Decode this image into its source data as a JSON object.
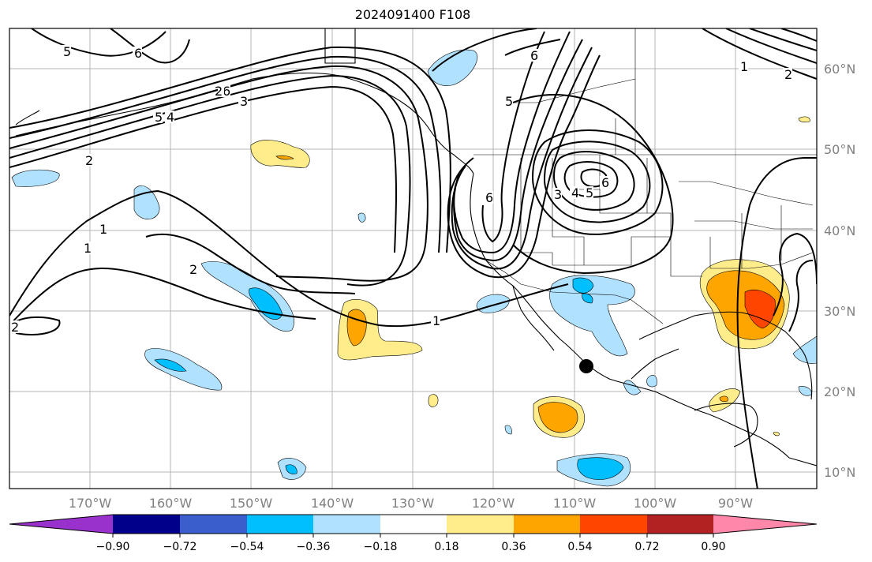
{
  "title": "2024091400 F108",
  "longitude_labels": [
    "170°W",
    "160°W",
    "150°W",
    "140°W",
    "130°W",
    "120°W",
    "110°W",
    "100°W",
    "90°W"
  ],
  "latitude_labels": [
    "60°N",
    "50°N",
    "40°N",
    "30°N",
    "20°N",
    "10°N"
  ],
  "colorbar": {
    "ticks": [
      "−0.90",
      "−0.72",
      "−0.54",
      "−0.36",
      "−0.18",
      "0.18",
      "0.36",
      "0.54",
      "0.72",
      "0.90"
    ],
    "colors": [
      "#9932cc",
      "#00008b",
      "#3a5fcd",
      "#00bfff",
      "#b0e2ff",
      "#ffffff",
      "#ffec8b",
      "#ffa500",
      "#ff4500",
      "#b22222",
      "#ff88aa"
    ]
  },
  "contour_labels": [
    "5",
    "6",
    "6",
    "5",
    "4",
    "3",
    "2",
    "1",
    "2",
    "1",
    "2",
    "2",
    "1",
    "5",
    "6",
    "6",
    "6",
    "5",
    "4",
    "3",
    "1",
    "2"
  ],
  "marker": {
    "label": "",
    "color": "#000000"
  }
}
